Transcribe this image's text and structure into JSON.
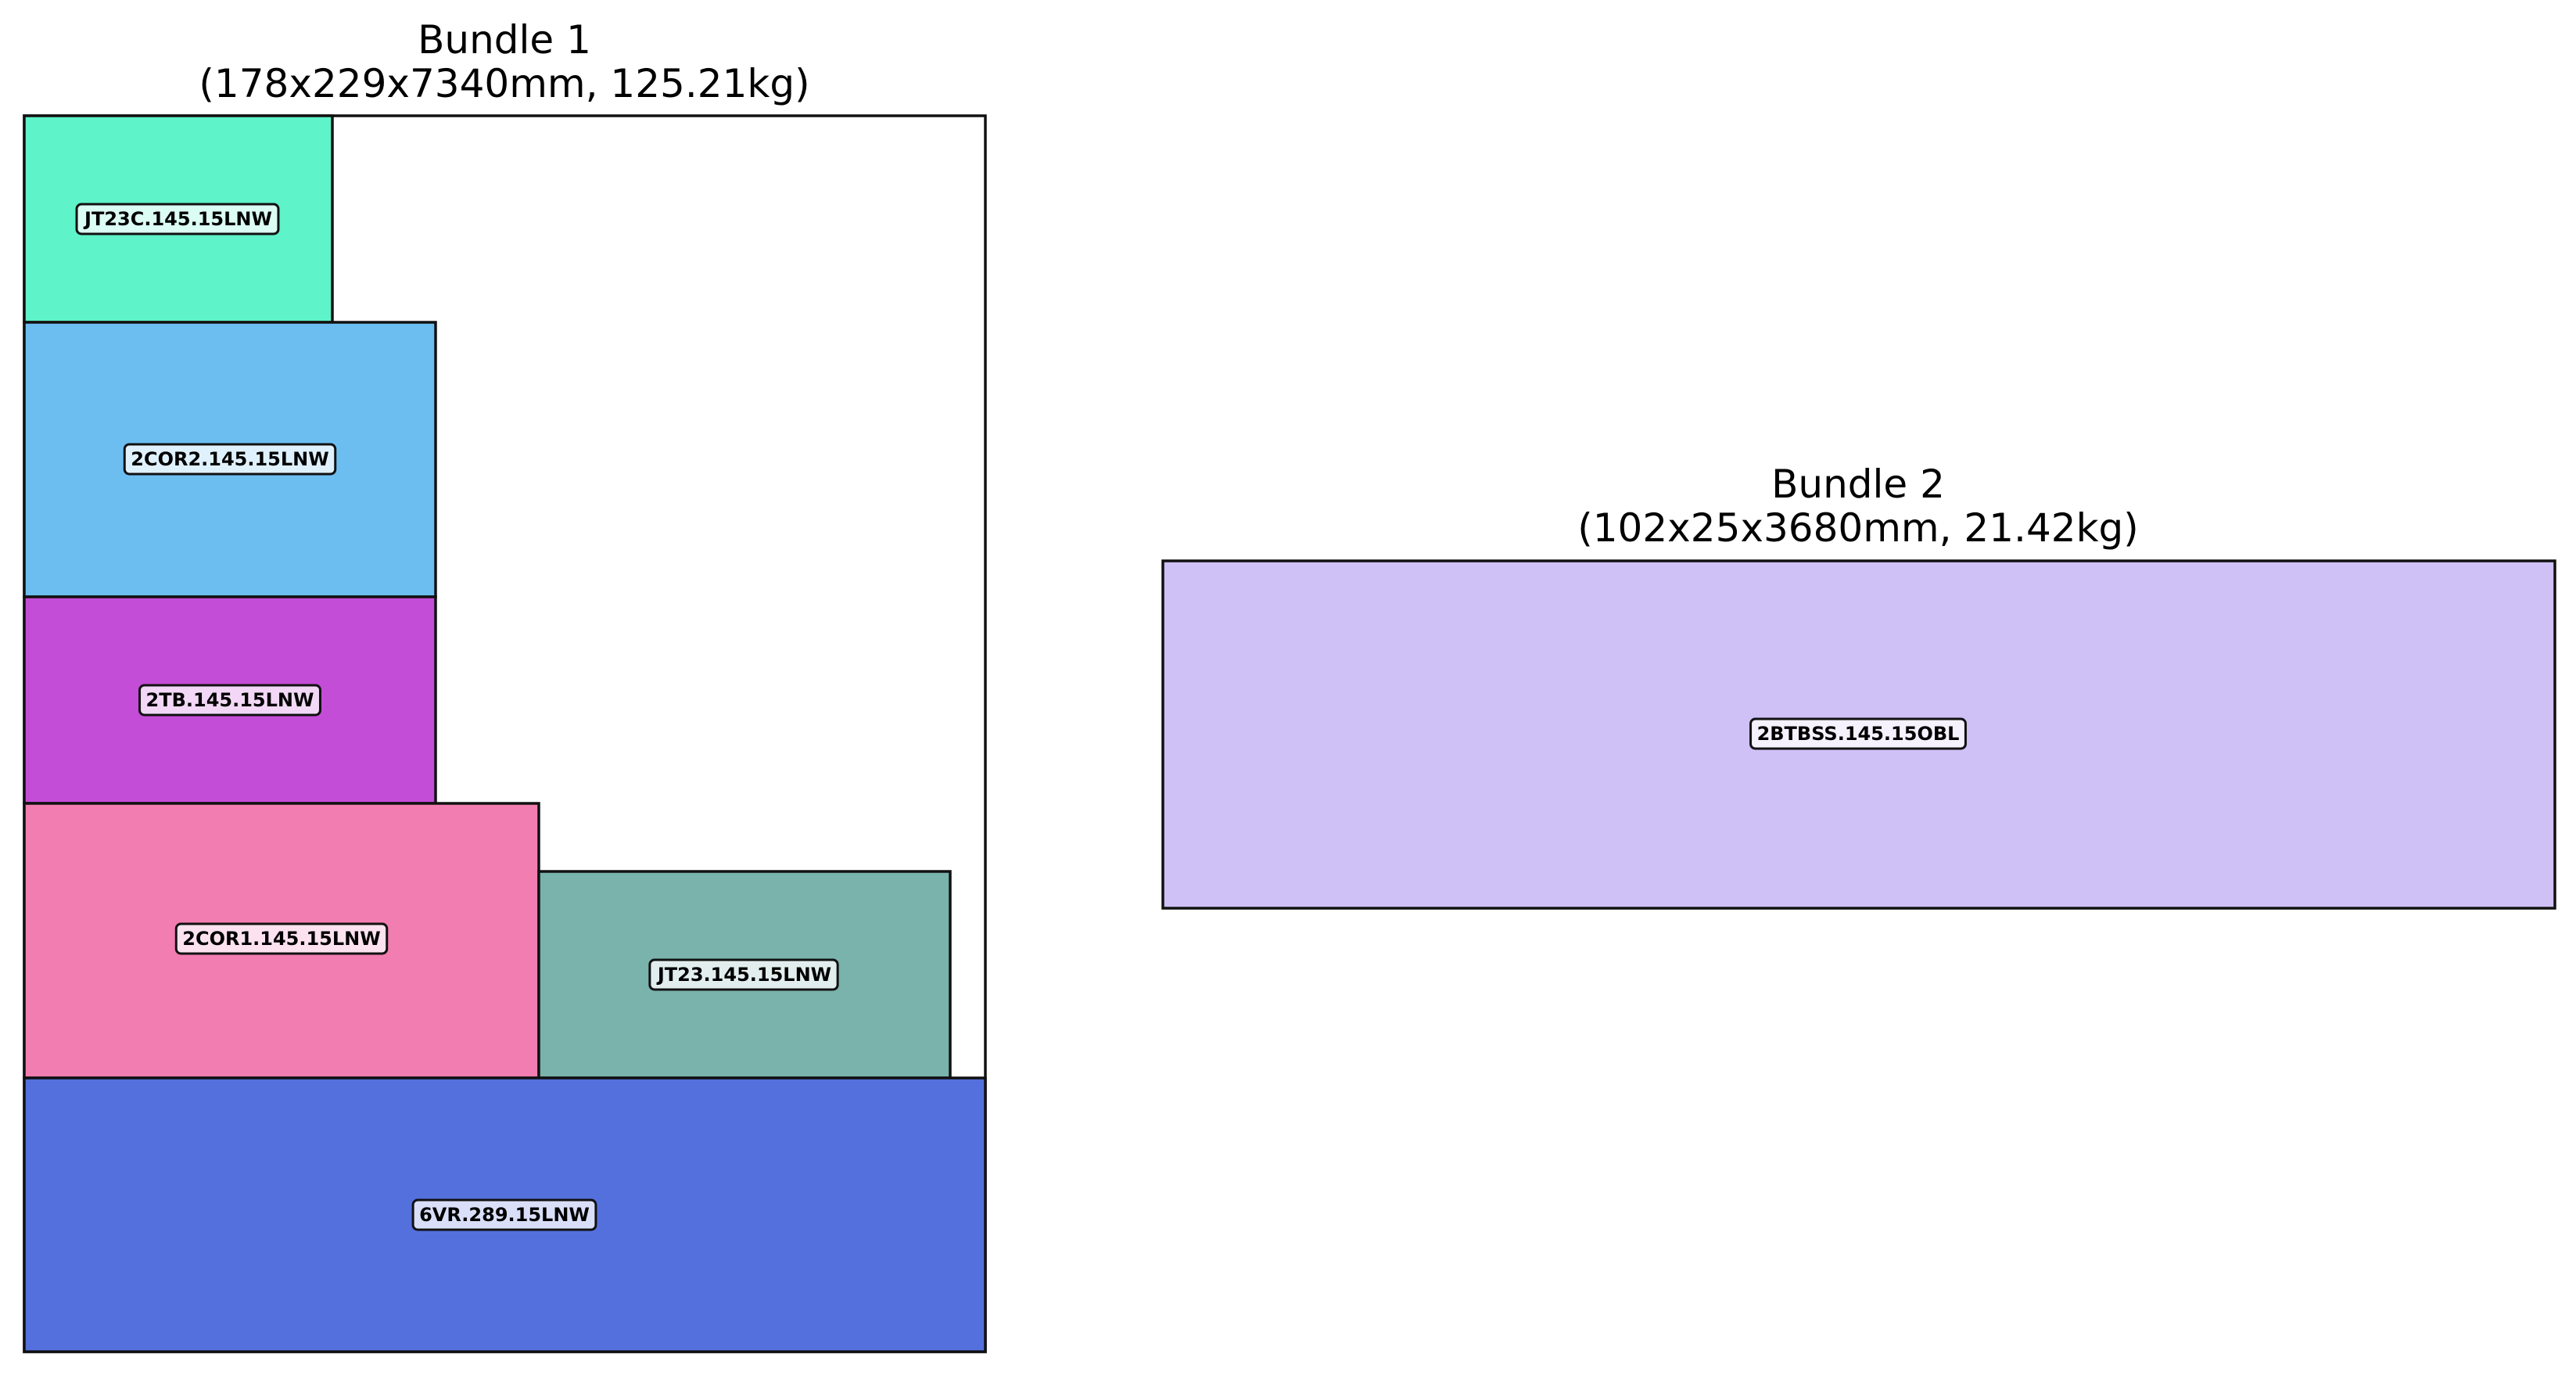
{
  "bundles": [
    {
      "title": "Bundle 1",
      "subtitle": "(178x229x7340mm, 125.21kg)",
      "pieces": [
        {
          "label": "JT23C.145.15LNW",
          "color": "#5ef3c9"
        },
        {
          "label": "2COR2.145.15LNW",
          "color": "#6cbef1"
        },
        {
          "label": "2TB.145.15LNW",
          "color": "#c44dd7"
        },
        {
          "label": "2COR1.145.15LNW",
          "color": "#f27db0"
        },
        {
          "label": "JT23.145.15LNW",
          "color": "#79b3ab"
        },
        {
          "label": "6VR.289.15LNW",
          "color": "#5470dd"
        }
      ]
    },
    {
      "title": "Bundle 2",
      "subtitle": "(102x25x3680mm, 21.42kg)",
      "pieces": [
        {
          "label": "2BTBSS.145.15OBL",
          "color": "#cfc1f6"
        }
      ]
    }
  ]
}
